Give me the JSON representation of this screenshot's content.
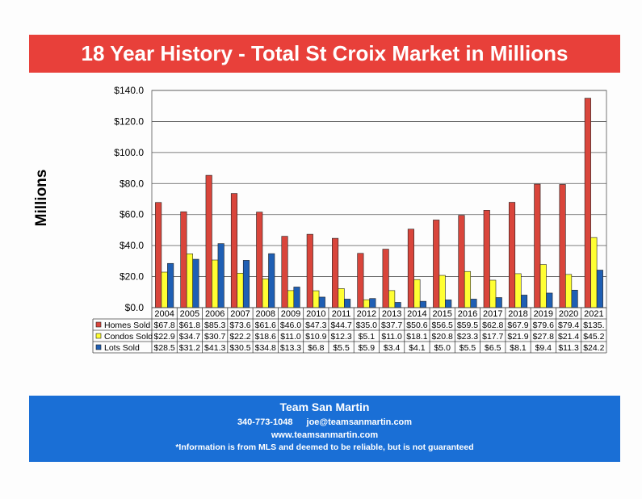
{
  "header": {
    "title": "18 Year History - Total St Croix Market in Millions"
  },
  "colors": {
    "title_banner": "#e8403a",
    "footer_banner": "#1a6fd6",
    "homes": "#d9453b",
    "condos": "#ffff33",
    "lots": "#1f5fb4"
  },
  "chart_data": {
    "type": "bar",
    "title": "",
    "xlabel": "",
    "ylabel": "Millions",
    "ylim": [
      0,
      140
    ],
    "yticks": [
      "$0.0",
      "$20.0",
      "$40.0",
      "$60.0",
      "$80.0",
      "$100.0",
      "$120.0",
      "$140.0"
    ],
    "grid": true,
    "legend": "data-table",
    "categories": [
      "2004",
      "2005",
      "2006",
      "2007",
      "2008",
      "2009",
      "2010",
      "2011",
      "2012",
      "2013",
      "2014",
      "2015",
      "2016",
      "2017",
      "2018",
      "2019",
      "2020",
      "2021"
    ],
    "series": [
      {
        "name": "Homes Sold",
        "color": "#d9453b",
        "values": [
          67.8,
          61.8,
          85.3,
          73.6,
          61.6,
          46.0,
          47.3,
          44.7,
          35.0,
          37.7,
          50.6,
          56.5,
          59.5,
          62.8,
          67.9,
          79.6,
          79.4,
          135
        ],
        "labels": [
          "$67.8",
          "$61.8",
          "$85.3",
          "$73.6",
          "$61.6",
          "$46.0",
          "$47.3",
          "$44.7",
          "$35.0",
          "$37.7",
          "$50.6",
          "$56.5",
          "$59.5",
          "$62.8",
          "$67.9",
          "$79.6",
          "$79.4",
          "$135."
        ]
      },
      {
        "name": "Condos Sold",
        "color": "#ffff33",
        "values": [
          22.9,
          34.7,
          30.7,
          22.2,
          18.6,
          11.0,
          10.9,
          12.3,
          5.1,
          11.0,
          18.1,
          20.8,
          23.3,
          17.7,
          21.9,
          27.8,
          21.4,
          45.2
        ],
        "labels": [
          "$22.9",
          "$34.7",
          "$30.7",
          "$22.2",
          "$18.6",
          "$11.0",
          "$10.9",
          "$12.3",
          "$5.1",
          "$11.0",
          "$18.1",
          "$20.8",
          "$23.3",
          "$17.7",
          "$21.9",
          "$27.8",
          "$21.4",
          "$45.2"
        ]
      },
      {
        "name": "Lots Sold",
        "color": "#1f5fb4",
        "values": [
          28.5,
          31.2,
          41.3,
          30.5,
          34.8,
          13.3,
          6.8,
          5.5,
          5.9,
          3.4,
          4.1,
          5.0,
          5.5,
          6.5,
          8.1,
          9.4,
          11.3,
          24.2
        ],
        "labels": [
          "$28.5",
          "$31.2",
          "$41.3",
          "$30.5",
          "$34.8",
          "$13.3",
          "$6.8",
          "$5.5",
          "$5.9",
          "$3.4",
          "$4.1",
          "$5.0",
          "$5.5",
          "$6.5",
          "$8.1",
          "$9.4",
          "$11.3",
          "$24.2"
        ]
      }
    ]
  },
  "footer": {
    "team": "Team San Martin",
    "phone": "340-773-1048",
    "email": "joe@teamsanmartin.com",
    "website": "www.teamsanmartin.com",
    "disclaimer": "*Information is from MLS and deemed to be reliable, but is not guaranteed"
  }
}
